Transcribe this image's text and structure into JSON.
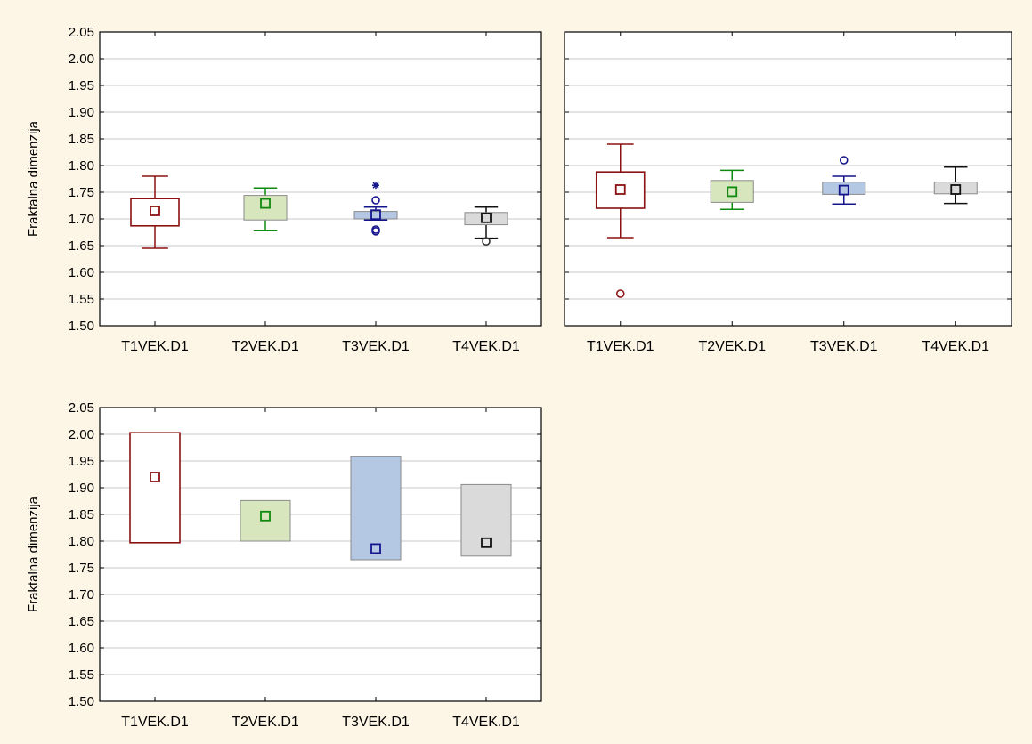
{
  "chart_data": [
    {
      "type": "box",
      "ylabel": "Fraktalna dimenzija",
      "ylim": [
        1.5,
        2.05
      ],
      "yticks": [
        "1.50",
        "1.55",
        "1.60",
        "1.65",
        "1.70",
        "1.75",
        "1.80",
        "1.85",
        "1.90",
        "1.95",
        "2.00",
        "2.05"
      ],
      "grid": true,
      "categories": [
        "T1VEK.D1",
        "T2VEK.D1",
        "T3VEK.D1",
        "T4VEK.D1"
      ],
      "boxes": [
        {
          "median": 1.715,
          "q1": 1.687,
          "q3": 1.738,
          "whisker_low": 1.645,
          "whisker_high": 1.78,
          "outliers": [],
          "extremes": []
        },
        {
          "median": 1.729,
          "q1": 1.698,
          "q3": 1.744,
          "whisker_low": 1.678,
          "whisker_high": 1.758,
          "outliers": [],
          "extremes": []
        },
        {
          "median": 1.708,
          "q1": 1.7,
          "q3": 1.714,
          "whisker_low": 1.698,
          "whisker_high": 1.722,
          "outliers": [
            1.677,
            1.68,
            1.735
          ],
          "extremes": [
            1.763
          ]
        },
        {
          "median": 1.702,
          "q1": 1.689,
          "q3": 1.712,
          "whisker_low": 1.664,
          "whisker_high": 1.722,
          "outliers": [
            1.658
          ],
          "extremes": []
        }
      ]
    },
    {
      "type": "box",
      "ylabel": "",
      "ylim": [
        1.5,
        2.05
      ],
      "yticks": [],
      "grid": true,
      "categories": [
        "T1VEK.D1",
        "T2VEK.D1",
        "T3VEK.D1",
        "T4VEK.D1"
      ],
      "boxes": [
        {
          "median": 1.755,
          "q1": 1.72,
          "q3": 1.788,
          "whisker_low": 1.665,
          "whisker_high": 1.84,
          "outliers": [
            1.56
          ],
          "extremes": []
        },
        {
          "median": 1.751,
          "q1": 1.731,
          "q3": 1.772,
          "whisker_low": 1.718,
          "whisker_high": 1.791,
          "outliers": [],
          "extremes": []
        },
        {
          "median": 1.754,
          "q1": 1.746,
          "q3": 1.769,
          "whisker_low": 1.728,
          "whisker_high": 1.78,
          "outliers": [
            1.81
          ],
          "extremes": []
        },
        {
          "median": 1.755,
          "q1": 1.747,
          "q3": 1.769,
          "whisker_low": 1.729,
          "whisker_high": 1.797,
          "outliers": [],
          "extremes": []
        }
      ]
    },
    {
      "type": "box",
      "ylabel": "Fraktalna dimenzija",
      "ylim": [
        1.5,
        2.05
      ],
      "yticks": [
        "1.50",
        "1.55",
        "1.60",
        "1.65",
        "1.70",
        "1.75",
        "1.80",
        "1.85",
        "1.90",
        "1.95",
        "2.00",
        "2.05"
      ],
      "grid": true,
      "categories": [
        "T1VEK.D1",
        "T2VEK.D1",
        "T3VEK.D1",
        "T4VEK.D1"
      ],
      "boxes": [
        {
          "median": 1.92,
          "q1": 1.797,
          "q3": 2.003,
          "whisker_low": null,
          "whisker_high": null,
          "outliers": [],
          "extremes": []
        },
        {
          "median": 1.847,
          "q1": 1.8,
          "q3": 1.876,
          "whisker_low": null,
          "whisker_high": null,
          "outliers": [],
          "extremes": []
        },
        {
          "median": 1.786,
          "q1": 1.765,
          "q3": 1.959,
          "whisker_low": null,
          "whisker_high": null,
          "outliers": [],
          "extremes": []
        },
        {
          "median": 1.797,
          "q1": 1.772,
          "q3": 1.906,
          "whisker_low": null,
          "whisker_high": null,
          "outliers": [],
          "extremes": []
        }
      ]
    }
  ],
  "style": {
    "series_colors": {
      "stroke": [
        "#8b1010",
        "#0e8a0e",
        "#14148c",
        "#111111"
      ],
      "fill": [
        "#ffffff",
        "#d8e6bd",
        "#b4c7e3",
        "#dadada"
      ],
      "outlier": [
        "#8b1010",
        "#0e8a0e",
        "#14148c",
        "#333333"
      ]
    },
    "background": "#fdf6e6",
    "grid_color": "#c8c8c8"
  }
}
